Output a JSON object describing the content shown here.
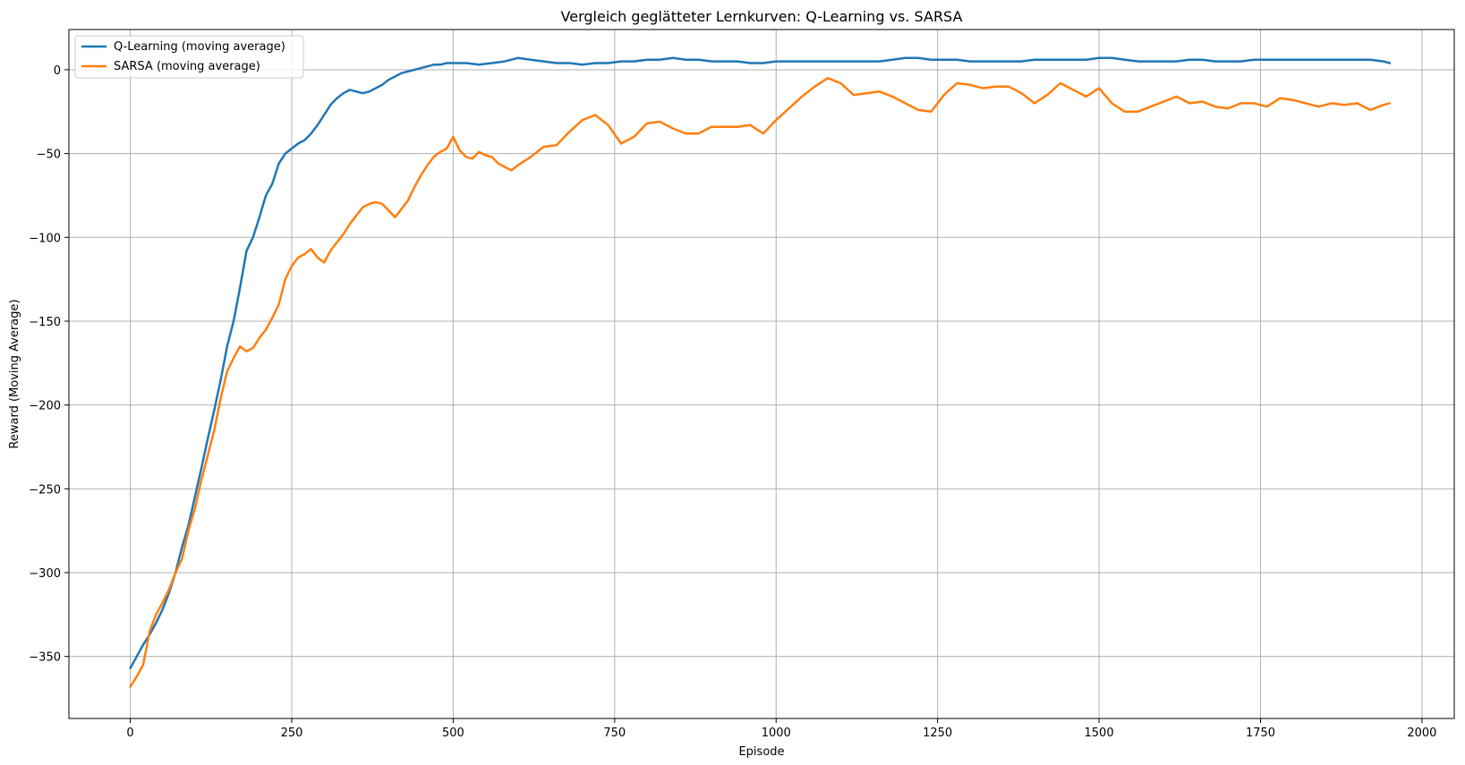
{
  "chart_data": {
    "type": "line",
    "title": "Vergleich geglätteter Lernkurven: Q-Learning vs. SARSA",
    "xlabel": "Episode",
    "ylabel": "Reward (Moving Average)",
    "xlim": [
      -95,
      2050
    ],
    "ylim": [
      -387,
      24
    ],
    "grid": true,
    "legend_position": "top-left",
    "x_ticks": [
      0,
      250,
      500,
      750,
      1000,
      1250,
      1500,
      1750,
      2000
    ],
    "y_ticks": [
      -350,
      -300,
      -250,
      -200,
      -150,
      -100,
      -50,
      0
    ],
    "x_tick_labels": [
      "0",
      "250",
      "500",
      "750",
      "1000",
      "1250",
      "1500",
      "1750",
      "2000"
    ],
    "y_tick_labels": [
      "−350",
      "−300",
      "−250",
      "−200",
      "−150",
      "−100",
      "−50",
      "0"
    ],
    "series": [
      {
        "name": "Q-Learning (moving average)",
        "color": "#1f77b4",
        "x": [
          0,
          10,
          20,
          30,
          40,
          50,
          60,
          70,
          80,
          90,
          100,
          110,
          120,
          130,
          140,
          150,
          160,
          170,
          180,
          190,
          200,
          210,
          220,
          230,
          240,
          250,
          260,
          270,
          280,
          290,
          300,
          310,
          320,
          330,
          340,
          350,
          360,
          370,
          380,
          390,
          400,
          410,
          420,
          430,
          440,
          450,
          460,
          470,
          480,
          490,
          500,
          520,
          540,
          560,
          580,
          600,
          620,
          640,
          660,
          680,
          700,
          720,
          740,
          760,
          780,
          800,
          820,
          840,
          860,
          880,
          900,
          920,
          940,
          960,
          980,
          1000,
          1020,
          1040,
          1060,
          1080,
          1100,
          1120,
          1140,
          1160,
          1180,
          1200,
          1220,
          1240,
          1260,
          1280,
          1300,
          1320,
          1340,
          1360,
          1380,
          1400,
          1420,
          1440,
          1460,
          1480,
          1500,
          1520,
          1540,
          1560,
          1580,
          1600,
          1620,
          1640,
          1660,
          1680,
          1700,
          1720,
          1740,
          1760,
          1780,
          1800,
          1820,
          1840,
          1860,
          1880,
          1900,
          1920,
          1940,
          1950
        ],
        "values": [
          -357,
          -350,
          -343,
          -337,
          -330,
          -322,
          -312,
          -300,
          -285,
          -272,
          -255,
          -238,
          -220,
          -203,
          -185,
          -165,
          -150,
          -130,
          -108,
          -100,
          -88,
          -75,
          -68,
          -56,
          -50,
          -47,
          -44,
          -42,
          -38,
          -33,
          -27,
          -21,
          -17,
          -14,
          -12,
          -13,
          -14,
          -13,
          -11,
          -9,
          -6,
          -4,
          -2,
          -1,
          0,
          1,
          2,
          3,
          3,
          4,
          4,
          4,
          3,
          4,
          5,
          7,
          6,
          5,
          4,
          4,
          3,
          4,
          4,
          5,
          5,
          6,
          6,
          7,
          6,
          6,
          5,
          5,
          5,
          4,
          4,
          5,
          5,
          5,
          5,
          5,
          5,
          5,
          5,
          5,
          6,
          7,
          7,
          6,
          6,
          6,
          5,
          5,
          5,
          5,
          5,
          6,
          6,
          6,
          6,
          6,
          7,
          7,
          6,
          5,
          5,
          5,
          5,
          6,
          6,
          5,
          5,
          5,
          6,
          6,
          6,
          6,
          6,
          6,
          6,
          6,
          6,
          6,
          5,
          4
        ]
      },
      {
        "name": "SARSA (moving average)",
        "color": "#ff7f0e",
        "x": [
          0,
          10,
          20,
          30,
          40,
          50,
          60,
          70,
          80,
          90,
          100,
          110,
          120,
          130,
          140,
          150,
          160,
          170,
          180,
          190,
          200,
          210,
          220,
          230,
          240,
          250,
          260,
          270,
          280,
          290,
          300,
          310,
          320,
          330,
          340,
          350,
          360,
          370,
          380,
          390,
          400,
          410,
          420,
          430,
          440,
          450,
          460,
          470,
          480,
          490,
          500,
          510,
          520,
          530,
          540,
          550,
          560,
          570,
          580,
          590,
          600,
          620,
          640,
          660,
          680,
          700,
          720,
          740,
          760,
          780,
          800,
          820,
          840,
          860,
          880,
          900,
          920,
          940,
          960,
          980,
          1000,
          1020,
          1040,
          1060,
          1080,
          1100,
          1120,
          1140,
          1160,
          1180,
          1200,
          1220,
          1240,
          1260,
          1280,
          1300,
          1320,
          1340,
          1360,
          1380,
          1400,
          1420,
          1440,
          1460,
          1480,
          1500,
          1520,
          1540,
          1560,
          1580,
          1600,
          1620,
          1640,
          1660,
          1680,
          1700,
          1720,
          1740,
          1760,
          1780,
          1800,
          1820,
          1840,
          1860,
          1880,
          1900,
          1920,
          1940,
          1950
        ],
        "values": [
          -368,
          -362,
          -355,
          -335,
          -325,
          -318,
          -310,
          -300,
          -292,
          -275,
          -262,
          -245,
          -230,
          -215,
          -196,
          -180,
          -172,
          -165,
          -168,
          -166,
          -160,
          -155,
          -148,
          -140,
          -125,
          -117,
          -112,
          -110,
          -107,
          -112,
          -115,
          -108,
          -103,
          -98,
          -92,
          -87,
          -82,
          -80,
          -79,
          -80,
          -84,
          -88,
          -83,
          -78,
          -70,
          -63,
          -57,
          -52,
          -49,
          -47,
          -40,
          -48,
          -52,
          -53,
          -49,
          -51,
          -52,
          -56,
          -58,
          -60,
          -57,
          -52,
          -46,
          -45,
          -37,
          -30,
          -27,
          -33,
          -44,
          -40,
          -32,
          -31,
          -35,
          -38,
          -38,
          -34,
          -34,
          -34,
          -33,
          -38,
          -30,
          -23,
          -16,
          -10,
          -5,
          -8,
          -15,
          -14,
          -13,
          -16,
          -20,
          -24,
          -25,
          -15,
          -8,
          -9,
          -11,
          -10,
          -10,
          -14,
          -20,
          -15,
          -8,
          -12,
          -16,
          -11,
          -20,
          -25,
          -25,
          -22,
          -19,
          -16,
          -20,
          -19,
          -22,
          -23,
          -20,
          -20,
          -22,
          -17,
          -18,
          -20,
          -22,
          -20,
          -21,
          -20,
          -24,
          -21,
          -20
        ]
      }
    ]
  }
}
